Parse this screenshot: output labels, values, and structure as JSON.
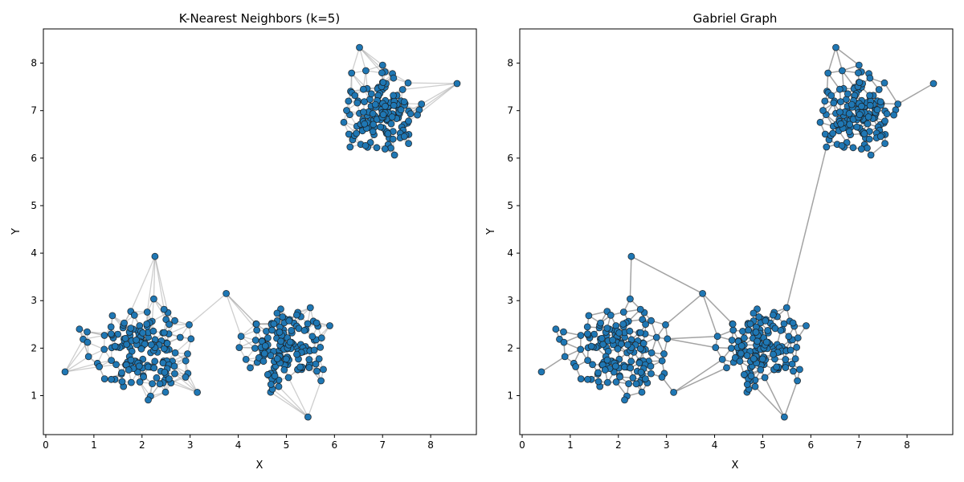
{
  "chart_data": [
    {
      "type": "scatter",
      "title": "K-Nearest Neighbors (k=5)",
      "xlabel": "X",
      "ylabel": "Y",
      "xlim": [
        -0.05,
        8.95
      ],
      "ylim": [
        0.18,
        8.72
      ],
      "xticks": [
        "0",
        "1",
        "2",
        "3",
        "4",
        "5",
        "6",
        "7",
        "8"
      ],
      "yticks": [
        "1",
        "2",
        "3",
        "4",
        "5",
        "6",
        "7",
        "8"
      ],
      "grid": false,
      "point_color": "#1f77b4",
      "edge_color": "#9e9e9e",
      "edge_style": "knn",
      "clusters": [
        {
          "center": [
            2.0,
            2.0
          ],
          "approx_radius": 1.2,
          "count": 150
        },
        {
          "center": [
            5.0,
            2.0
          ],
          "approx_radius": 1.0,
          "count": 150
        },
        {
          "center": [
            7.0,
            7.0
          ],
          "approx_radius": 1.0,
          "count": 150
        }
      ],
      "notable_points": [
        [
          0.4,
          1.5
        ],
        [
          0.7,
          2.4
        ],
        [
          2.27,
          3.93
        ],
        [
          3.75,
          3.15
        ],
        [
          8.55,
          7.57
        ],
        [
          6.52,
          8.33
        ],
        [
          5.45,
          0.55
        ],
        [
          3.15,
          1.07
        ]
      ]
    },
    {
      "type": "scatter",
      "title": "Gabriel Graph",
      "xlabel": "X",
      "ylabel": "Y",
      "xlim": [
        -0.05,
        8.95
      ],
      "ylim": [
        0.18,
        8.72
      ],
      "xticks": [
        "0",
        "1",
        "2",
        "3",
        "4",
        "5",
        "6",
        "7",
        "8"
      ],
      "yticks": [
        "1",
        "2",
        "3",
        "4",
        "5",
        "6",
        "7",
        "8"
      ],
      "grid": false,
      "point_color": "#1f77b4",
      "edge_color": "#8c8c8c",
      "edge_style": "gabriel",
      "clusters": [
        {
          "center": [
            2.0,
            2.0
          ],
          "approx_radius": 1.2,
          "count": 150
        },
        {
          "center": [
            5.0,
            2.0
          ],
          "approx_radius": 1.0,
          "count": 150
        },
        {
          "center": [
            7.0,
            7.0
          ],
          "approx_radius": 1.0,
          "count": 150
        }
      ],
      "notable_points": [
        [
          0.4,
          1.5
        ],
        [
          0.7,
          2.4
        ],
        [
          2.27,
          3.93
        ],
        [
          3.75,
          3.15
        ],
        [
          8.55,
          7.57
        ],
        [
          6.52,
          8.33
        ],
        [
          5.45,
          0.55
        ],
        [
          3.15,
          1.07
        ]
      ]
    }
  ]
}
